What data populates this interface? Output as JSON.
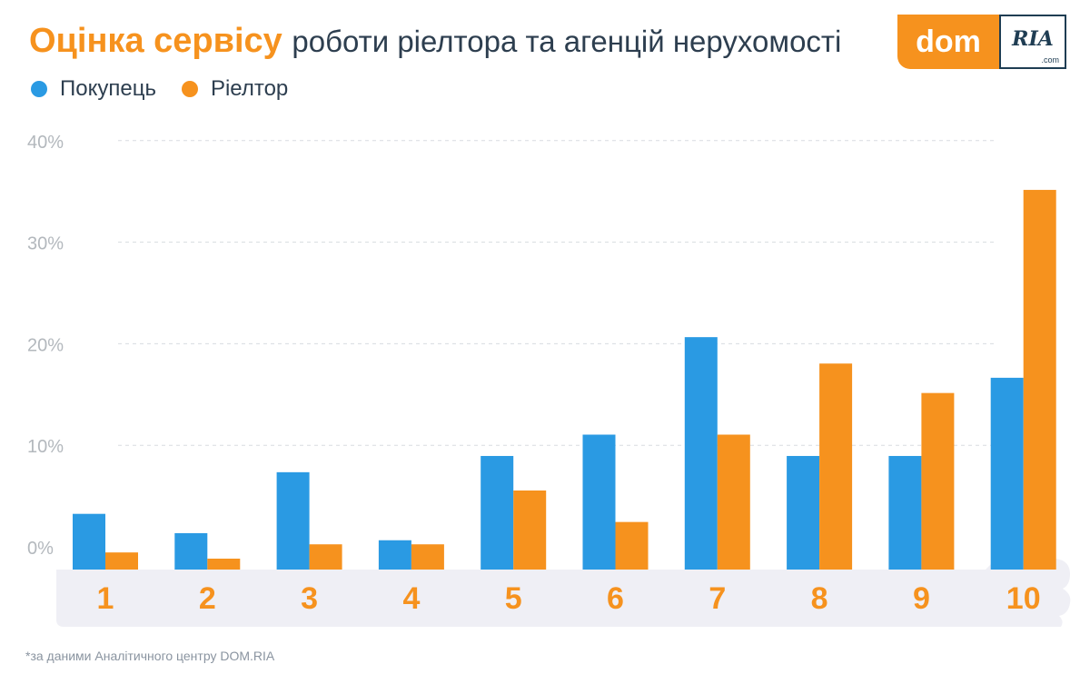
{
  "header": {
    "title_accent": "Оцінка сервісу",
    "title_rest": "роботи ріелтора та агенцій нерухомості"
  },
  "logo": {
    "dom": "dom",
    "ria": "RIA",
    "com": ".com"
  },
  "colors": {
    "buyer": "#2a9ae3",
    "realtor": "#f6921e",
    "title_accent": "#f6921e",
    "title_text": "#2d3e4f",
    "axis_text": "#b3b8bd",
    "category_text": "#f6921e",
    "thumb": "#efeff5",
    "grid": "#d8dbe0"
  },
  "chart_data": {
    "type": "bar",
    "categories": [
      "1",
      "2",
      "3",
      "4",
      "5",
      "6",
      "7",
      "8",
      "9",
      "10"
    ],
    "series": [
      {
        "name": "Покупець",
        "values": [
          4.5,
          2.6,
          8.6,
          1.9,
          10.2,
          12.3,
          21.9,
          10.2,
          10.2,
          17.9
        ]
      },
      {
        "name": "Ріелтор",
        "values": [
          0.7,
          0,
          1.5,
          1.5,
          6.8,
          3.7,
          12.3,
          19.3,
          16.4,
          36.4
        ]
      }
    ],
    "yticks": [
      "0%",
      "10%",
      "20%",
      "30%",
      "40%"
    ],
    "ylim": [
      0,
      40
    ],
    "grid": true,
    "legend_position": "top-left"
  },
  "footnote": "*за даними Аналітичного центру DOM.RIA"
}
